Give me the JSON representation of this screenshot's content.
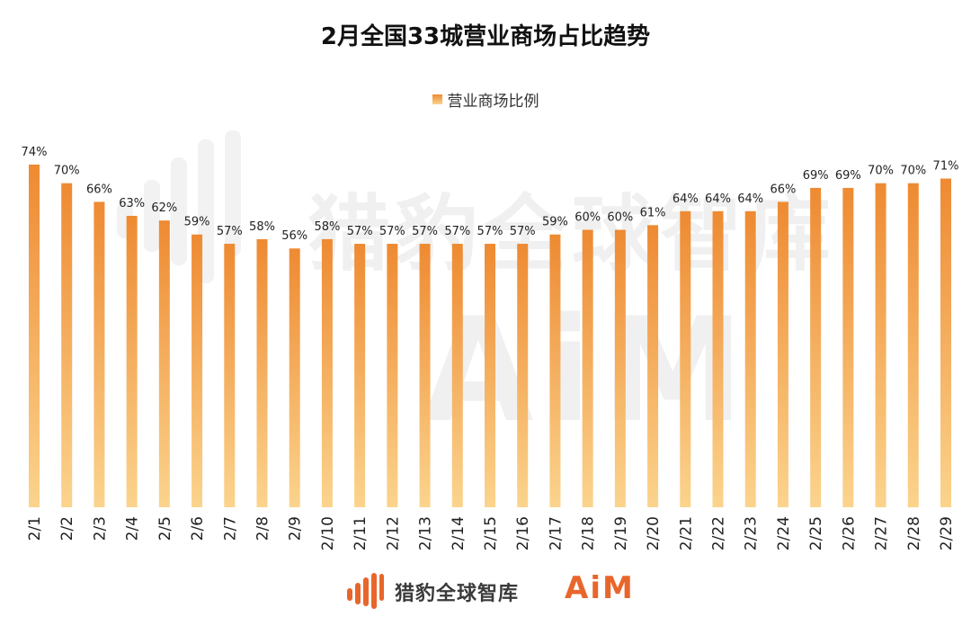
{
  "chart_data": {
    "type": "bar",
    "title": "2月全国33城营业商场占比趋势",
    "legend": [
      "营业商场比例"
    ],
    "legend_position": "top-center",
    "categories": [
      "2/1",
      "2/2",
      "2/3",
      "2/4",
      "2/5",
      "2/6",
      "2/7",
      "2/8",
      "2/9",
      "2/10",
      "2/11",
      "2/12",
      "2/13",
      "2/14",
      "2/15",
      "2/16",
      "2/17",
      "2/18",
      "2/19",
      "2/20",
      "2/21",
      "2/22",
      "2/23",
      "2/24",
      "2/25",
      "2/26",
      "2/27",
      "2/28",
      "2/29"
    ],
    "series": [
      {
        "name": "营业商场比例",
        "values": [
          74,
          70,
          66,
          63,
          62,
          59,
          57,
          58,
          56,
          58,
          57,
          57,
          57,
          57,
          57,
          57,
          59,
          60,
          60,
          61,
          64,
          64,
          64,
          66,
          69,
          69,
          70,
          70,
          71
        ],
        "labels": [
          "74%",
          "70%",
          "66%",
          "63%",
          "62%",
          "59%",
          "57%",
          "58%",
          "56%",
          "58%",
          "57%",
          "57%",
          "57%",
          "57%",
          "57%",
          "57%",
          "59%",
          "60%",
          "60%",
          "61%",
          "64%",
          "64%",
          "64%",
          "66%",
          "69%",
          "69%",
          "70%",
          "70%",
          "71%"
        ]
      }
    ],
    "value_unit": "%",
    "y_axis_visible": false,
    "grid": false,
    "bar_gradient": [
      "#ee8a32",
      "#fbd48d"
    ]
  },
  "watermark": {
    "brand_cn": "猎豹全球智库",
    "brand_en": "AiM"
  },
  "footer": {
    "brand_cn": "猎豹全球智库",
    "brand_en": "AiM",
    "brand_color": "#e8662c"
  }
}
